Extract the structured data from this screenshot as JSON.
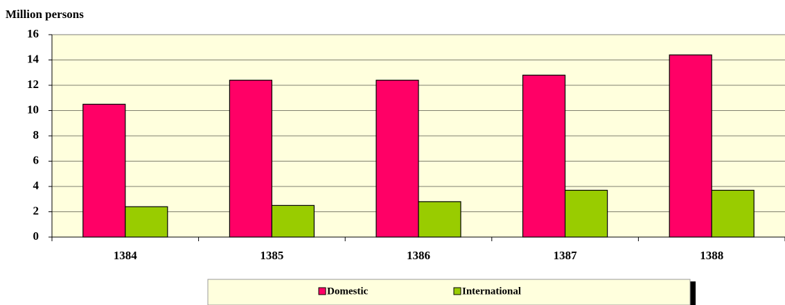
{
  "chart_data": {
    "type": "bar",
    "y_label": "Million persons",
    "categories": [
      "1384",
      "1385",
      "1386",
      "1387",
      "1388"
    ],
    "series": [
      {
        "name": "Domestic",
        "color": "#ff0066",
        "values": [
          10.5,
          12.4,
          12.4,
          12.8,
          14.4
        ]
      },
      {
        "name": "International",
        "color": "#99cc00",
        "values": [
          2.4,
          2.5,
          2.8,
          3.7,
          3.7
        ]
      }
    ],
    "ylim": [
      0,
      16
    ],
    "yticks": [
      0,
      2,
      4,
      6,
      8,
      10,
      12,
      14,
      16
    ],
    "grid": true,
    "legend": "bottom"
  }
}
